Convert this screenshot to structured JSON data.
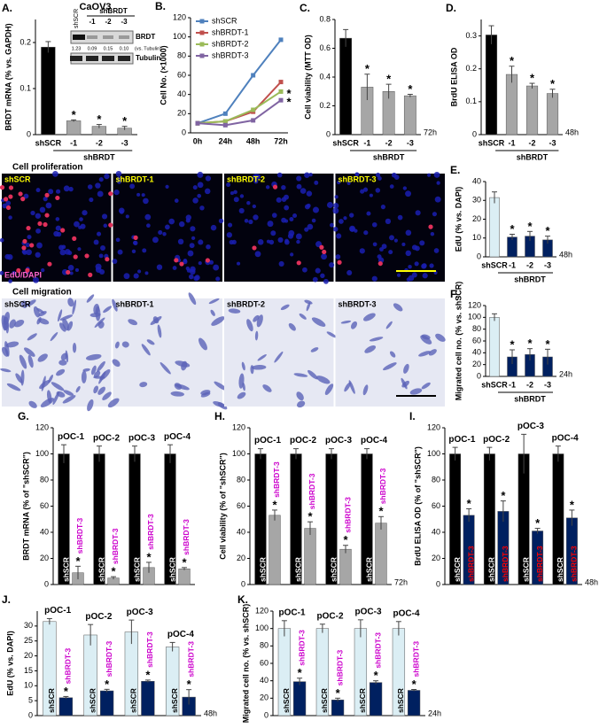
{
  "chart_data": [
    {
      "type": "bar",
      "label": "A.",
      "title": "CaOV3",
      "ylabel": "BRDT mRNA (% vs. GAPDH)",
      "categories": [
        "shSCR",
        "-1",
        "-2",
        "-3"
      ],
      "group_label": "shBRDT",
      "values": [
        0.19,
        0.03,
        0.018,
        0.014
      ],
      "errors": [
        0.012,
        0.002,
        0.004,
        0.004
      ],
      "colors": [
        "#000000",
        "#a6a6a6",
        "#a6a6a6",
        "#a6a6a6"
      ],
      "markers": [
        null,
        "*",
        "*",
        "*"
      ],
      "ylim": [
        0,
        0.25
      ],
      "yticks": [
        0,
        0.1,
        0.2
      ],
      "inset": {
        "title": "shBRDT",
        "lanes": [
          "shSCR",
          "-1",
          "-2",
          "-3"
        ],
        "rows": [
          "BRDT",
          "Tubulin"
        ],
        "quant": [
          1.23,
          0.09,
          0.15,
          {
            "value": 0.1,
            "label": "0.10"
          }
        ],
        "quant_note": "(vs. Tubulin)"
      }
    },
    {
      "type": "line",
      "label": "B.",
      "ylabel": "Cell No. (×1000)",
      "categories": [
        "0h",
        "24h",
        "48h",
        "72h"
      ],
      "ylim": [
        0,
        120
      ],
      "yticks": [
        0,
        20,
        40,
        60,
        80,
        100,
        120
      ],
      "series": [
        {
          "name": "shSCR",
          "color": "#4f81bd",
          "values": [
            10,
            20,
            60,
            97
          ]
        },
        {
          "name": "shBRDT-1",
          "color": "#c0504d",
          "values": [
            10,
            12,
            22,
            53
          ]
        },
        {
          "name": "shBRDT-2",
          "color": "#9bbb59",
          "values": [
            10,
            12,
            24,
            43
          ],
          "markers": [
            null,
            null,
            null,
            "*"
          ]
        },
        {
          "name": "shBRDT-3",
          "color": "#8064a2",
          "values": [
            10,
            8,
            13,
            34
          ],
          "markers": [
            null,
            null,
            null,
            "*"
          ]
        }
      ]
    },
    {
      "type": "bar",
      "label": "C.",
      "ylabel": "Cell viability (MTT OD)",
      "categories": [
        "shSCR",
        "-1",
        "-2",
        "-3"
      ],
      "group_label": "shBRDT",
      "note": "72h",
      "values": [
        0.67,
        0.33,
        0.3,
        0.27
      ],
      "errors": [
        0.06,
        0.09,
        0.05,
        0.01
      ],
      "colors": [
        "#000000",
        "#a6a6a6",
        "#a6a6a6",
        "#a6a6a6"
      ],
      "markers": [
        null,
        "*",
        "*",
        "*"
      ],
      "ylim": [
        0,
        0.8
      ],
      "yticks": [
        0,
        0.2,
        0.4,
        0.6,
        0.8
      ]
    },
    {
      "type": "bar",
      "label": "D.",
      "ylabel": "BrdU ELISA OD",
      "categories": [
        "shSCR",
        "-1",
        "-2",
        "-3"
      ],
      "group_label": "shBRDT",
      "note": "48h",
      "values": [
        0.303,
        0.183,
        0.148,
        0.125
      ],
      "errors": [
        0.028,
        0.025,
        0.008,
        0.013
      ],
      "colors": [
        "#000000",
        "#a6a6a6",
        "#a6a6a6",
        "#a6a6a6"
      ],
      "markers": [
        null,
        "*",
        "*",
        "*"
      ],
      "ylim": [
        0,
        0.35
      ],
      "yticks": [
        0,
        0.1,
        0.2,
        0.3
      ]
    },
    {
      "type": "bar",
      "label": "E.",
      "ylabel": "EdU (% vs. DAPI)",
      "categories": [
        "shSCR",
        "-1",
        "-2",
        "-3"
      ],
      "group_label": "shBRDT",
      "note": "48h",
      "values": [
        31.5,
        10.5,
        11,
        9
      ],
      "errors": [
        3,
        1.5,
        2.5,
        2
      ],
      "colors": [
        "#dbeef4",
        "#002060",
        "#002060",
        "#002060"
      ],
      "markers": [
        null,
        "*",
        "*",
        "*"
      ],
      "ylim": [
        0,
        40
      ],
      "yticks": [
        0,
        10,
        20,
        30,
        40
      ],
      "images": {
        "title": "Cell proliferation",
        "labels": [
          "shSCR",
          "shBRDT-1",
          "shBRDT-2",
          "shBRDT-3"
        ],
        "stain": "EdU/DAPI"
      }
    },
    {
      "type": "bar",
      "label": "F.",
      "ylabel": "Migrated cell no. (% vs. shSCR)",
      "categories": [
        "shSCR",
        "-1",
        "-2",
        "-3"
      ],
      "group_label": "shBRDT",
      "note": "24h",
      "values": [
        100,
        33,
        37,
        33
      ],
      "errors": [
        6,
        12,
        10,
        13
      ],
      "colors": [
        "#dbeef4",
        "#002060",
        "#002060",
        "#002060"
      ],
      "markers": [
        null,
        "*",
        "*",
        "*"
      ],
      "ylim": [
        0,
        120
      ],
      "yticks": [
        0,
        20,
        40,
        60,
        80,
        100,
        120
      ],
      "images": {
        "title": "Cell migration",
        "labels": [
          "shSCR",
          "shBRDT-1",
          "shBRDT-2",
          "shBRDT-3"
        ]
      }
    },
    {
      "type": "grouped_bar",
      "label": "G.",
      "ylabel": "BRDT mRNA (% of \"shSCR\")",
      "groups": [
        "pOC-1",
        "pOC-2",
        "pOC-3",
        "pOC-4"
      ],
      "ylim": [
        0,
        120
      ],
      "yticks": [
        0,
        20,
        40,
        60,
        80,
        100,
        120
      ],
      "series": [
        {
          "name": "shSCR",
          "color": "#000000",
          "label_color": "#ffffff",
          "values": [
            100,
            100,
            100,
            100
          ],
          "errors": [
            7,
            6,
            6,
            7
          ]
        },
        {
          "name": "shBRDT-3",
          "color": "#a6a6a6",
          "label_color": "#cc00cc",
          "values": [
            9,
            5,
            13,
            12
          ],
          "errors": [
            5,
            1,
            4,
            1
          ],
          "markers": [
            "*",
            "*",
            "*",
            "*"
          ]
        }
      ]
    },
    {
      "type": "grouped_bar",
      "label": "H.",
      "ylabel": "Cell viability (% of \"shSCR\")",
      "note": "72h",
      "groups": [
        "pOC-1",
        "pOC-2",
        "pOC-3",
        "pOC-4"
      ],
      "ylim": [
        0,
        120
      ],
      "yticks": [
        0,
        20,
        40,
        60,
        80,
        100,
        120
      ],
      "series": [
        {
          "name": "shSCR",
          "color": "#000000",
          "label_color": "#ffffff",
          "values": [
            100,
            100,
            100,
            100
          ],
          "errors": [
            4,
            4,
            4,
            4
          ]
        },
        {
          "name": "shBRDT-3",
          "color": "#a6a6a6",
          "label_color": "#cc00cc",
          "values": [
            53,
            43,
            27,
            47
          ],
          "errors": [
            4,
            5,
            3,
            5
          ],
          "markers": [
            "*",
            "*",
            "*",
            "*"
          ]
        }
      ]
    },
    {
      "type": "grouped_bar",
      "label": "I.",
      "ylabel": "BrdU ELISA OD (% of \"shSCR\")",
      "note": "48h",
      "groups": [
        "pOC-1",
        "pOC-2",
        "pOC-3",
        "pOC-4"
      ],
      "ylim": [
        0,
        120
      ],
      "yticks": [
        0,
        20,
        40,
        60,
        80,
        100,
        120
      ],
      "series": [
        {
          "name": "shSCR",
          "color": "#000000",
          "label_color": "#ffffff",
          "values": [
            100,
            100,
            100,
            100
          ],
          "errors": [
            5,
            5,
            15,
            6
          ]
        },
        {
          "name": "shBRDT-3",
          "color": "#002060",
          "label_color": "#ff0000",
          "label_inside": true,
          "values": [
            53,
            56,
            41,
            51
          ],
          "errors": [
            5,
            8,
            2,
            6
          ],
          "markers": [
            "*",
            "*",
            "*",
            "*"
          ]
        }
      ]
    },
    {
      "type": "grouped_bar",
      "label": "J.",
      "ylabel": "EdU (% vs. DAPI)",
      "note": "48h",
      "groups": [
        "pOC-1",
        "pOC-2",
        "pOC-3",
        "pOC-4"
      ],
      "ylim": [
        0,
        35
      ],
      "yticks": [
        0,
        5,
        10,
        15,
        20,
        25,
        30
      ],
      "series": [
        {
          "name": "shSCR",
          "color": "#dbeef4",
          "label_color": "#000000",
          "values": [
            31.5,
            27,
            28,
            23
          ],
          "errors": [
            1,
            3.5,
            4,
            1.5
          ]
        },
        {
          "name": "shBRDT-3",
          "color": "#002060",
          "label_color": "#cc00cc",
          "values": [
            6,
            8.3,
            11.5,
            6.2
          ],
          "errors": [
            0.4,
            0.5,
            0.4,
            2.5
          ],
          "markers": [
            "*",
            "*",
            "*",
            "*"
          ]
        }
      ]
    },
    {
      "type": "grouped_bar",
      "label": "K.",
      "ylabel": "Migrated cell no. (% vs. shSCR)",
      "note": "24h",
      "groups": [
        "pOC-1",
        "pOC-2",
        "pOC-3",
        "pOC-4"
      ],
      "ylim": [
        0,
        120
      ],
      "yticks": [
        0,
        20,
        40,
        60,
        80,
        100,
        120
      ],
      "series": [
        {
          "name": "shSCR",
          "color": "#dbeef4",
          "label_color": "#000000",
          "values": [
            100,
            100,
            100,
            100
          ],
          "errors": [
            9,
            5,
            10,
            8
          ]
        },
        {
          "name": "shBRDT-3",
          "color": "#002060",
          "label_color": "#cc00cc",
          "values": [
            39,
            18,
            38,
            29
          ],
          "errors": [
            4,
            2,
            2,
            1
          ],
          "markers": [
            "*",
            "*",
            "*",
            "*"
          ]
        }
      ]
    }
  ]
}
